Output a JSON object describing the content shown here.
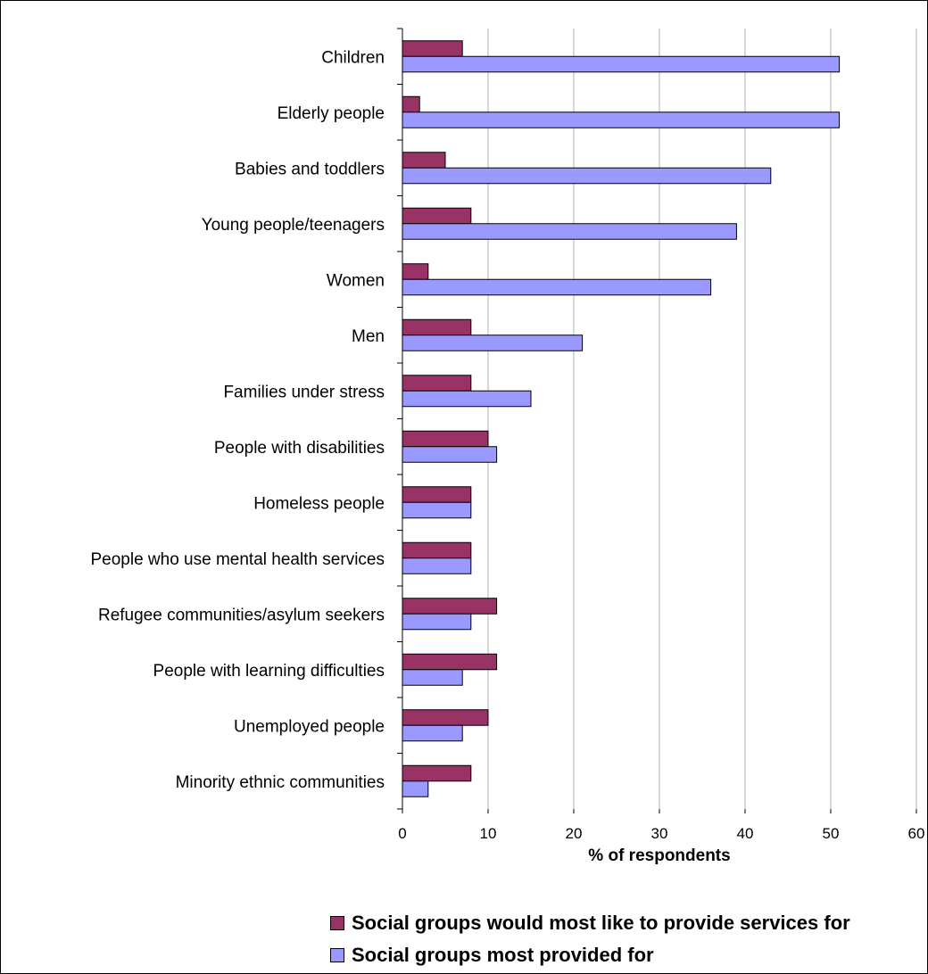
{
  "chart_data": {
    "type": "bar",
    "orientation": "horizontal",
    "categories": [
      "Children",
      "Elderly people",
      "Babies and toddlers",
      "Young people/teenagers",
      "Women",
      "Men",
      "Families under stress",
      "People with disabilities",
      "Homeless people",
      "People who use mental health services",
      "Refugee communities/asylum seekers",
      "People with learning difficulties",
      "Unemployed people",
      "Minority ethnic communities"
    ],
    "series": [
      {
        "name": "Social groups would most like to provide services for",
        "color": "#993366",
        "values": [
          7,
          2,
          5,
          8,
          3,
          8,
          8,
          10,
          8,
          8,
          11,
          11,
          10,
          8
        ]
      },
      {
        "name": "Social groups most provided for",
        "color": "#9999ff",
        "values": [
          51,
          51,
          43,
          39,
          36,
          21,
          15,
          11,
          8,
          8,
          8,
          7,
          7,
          3
        ]
      }
    ],
    "xlabel": "% of respondents",
    "xlim": [
      0,
      60
    ],
    "xticks": [
      "0",
      "10",
      "20",
      "30",
      "40",
      "50",
      "60"
    ],
    "grid": "vertical",
    "legend_position": "bottom"
  }
}
